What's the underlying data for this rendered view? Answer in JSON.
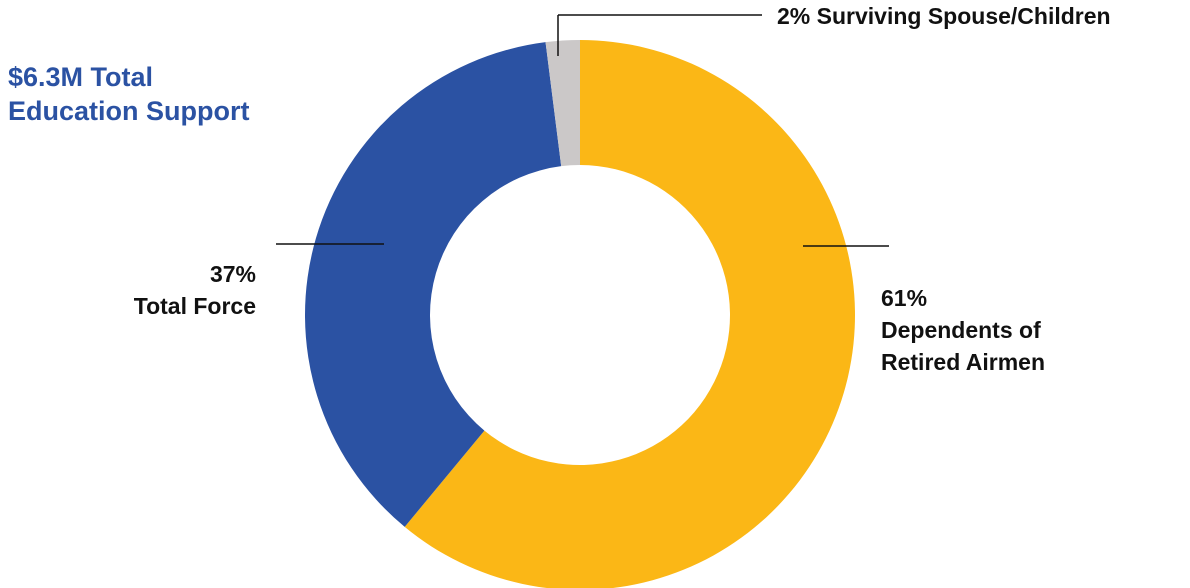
{
  "chart_data": {
    "type": "pie",
    "title": [
      "$6.3M Total",
      "Education Support"
    ],
    "colors": {
      "title": "#2b52a3",
      "label": "#111111",
      "leader": "#111111"
    },
    "slices": [
      {
        "name": "Dependents of Retired Airmen",
        "value": 61,
        "percent_label": "61%",
        "label_lines": [
          "Dependents of",
          "Retired Airmen"
        ],
        "color": "#fbb716"
      },
      {
        "name": "Total Force",
        "value": 37,
        "percent_label": "37%",
        "label_lines": [
          "Total Force"
        ],
        "color": "#2b52a3"
      },
      {
        "name": "Surviving Spouse/Children",
        "value": 2,
        "percent_label": "2%",
        "label_lines": [
          "Surviving Spouse/Children"
        ],
        "color": "#cbc8c8"
      }
    ]
  }
}
